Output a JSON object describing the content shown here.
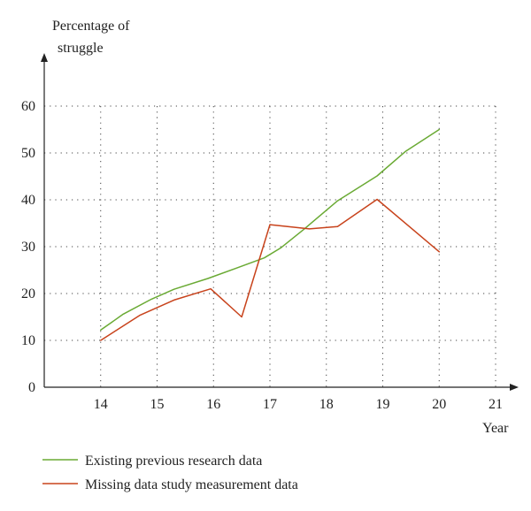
{
  "chart_data": {
    "type": "line",
    "title": "",
    "ylabel_lines": [
      "Percentage of",
      "struggle"
    ],
    "xlabel": "Year",
    "xlim": [
      13,
      21
    ],
    "ylim": [
      0,
      60
    ],
    "x_ticks": [
      14,
      15,
      16,
      17,
      18,
      19,
      20,
      21
    ],
    "y_ticks": [
      0,
      10,
      20,
      30,
      40,
      50,
      60
    ],
    "grid": true,
    "grid_style": "dotted",
    "legend_position": "bottom-left",
    "series": [
      {
        "name": "Existing previous research data",
        "color": "#6aaa34",
        "points": [
          [
            14,
            12.2
          ],
          [
            14.4,
            15.6
          ],
          [
            14.9,
            18.8
          ],
          [
            15.3,
            20.9
          ],
          [
            15.9,
            23.2
          ],
          [
            16.4,
            25.4
          ],
          [
            16.9,
            27.6
          ],
          [
            17.2,
            29.8
          ],
          [
            17.6,
            33.7
          ],
          [
            18.2,
            39.8
          ],
          [
            18.9,
            45.1
          ],
          [
            19.4,
            50.3
          ],
          [
            20,
            55
          ]
        ]
      },
      {
        "name": "Missing data study measurement data",
        "color": "#c8431c",
        "points": [
          [
            14,
            10
          ],
          [
            14.7,
            15.4
          ],
          [
            15.3,
            18.6
          ],
          [
            15.95,
            21
          ],
          [
            16.5,
            15
          ],
          [
            17,
            34.7
          ],
          [
            17.7,
            33.8
          ],
          [
            18.2,
            34.3
          ],
          [
            18.9,
            40.1
          ],
          [
            20,
            28.9
          ]
        ]
      }
    ]
  }
}
